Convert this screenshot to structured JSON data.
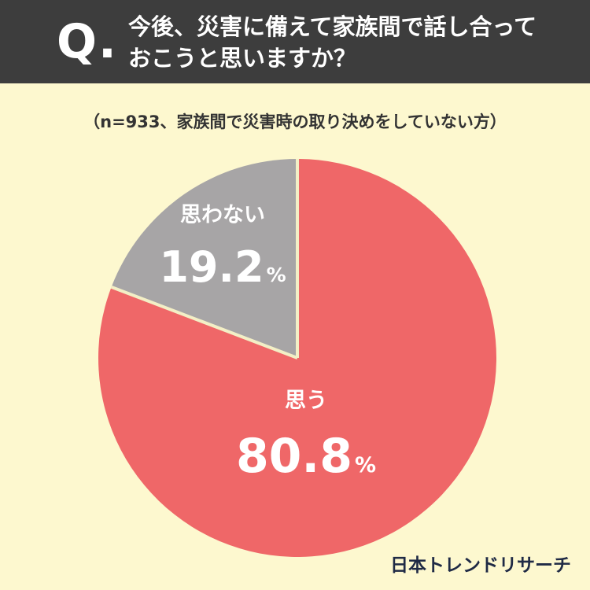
{
  "header": {
    "q_mark": "Q.",
    "question": "今後、災害に備えて家族間で話し合って\nおこうと思いますか？"
  },
  "subtitle": "（n=933、家族間で災害時の取り決めをしていない方）",
  "chart_data": {
    "type": "pie",
    "start": "12 o'clock",
    "direction": "clockwise",
    "slices": [
      {
        "label": "思う",
        "value": 80.8,
        "value_text": "80.8",
        "unit": "%",
        "color": "#ef6768"
      },
      {
        "label": "思わない",
        "value": 19.2,
        "value_text": "19.2",
        "unit": "%",
        "color": "#a7a5a6"
      }
    ],
    "separator_color": "#f3efc6"
  },
  "logo": "日本トレンドリサーチ"
}
